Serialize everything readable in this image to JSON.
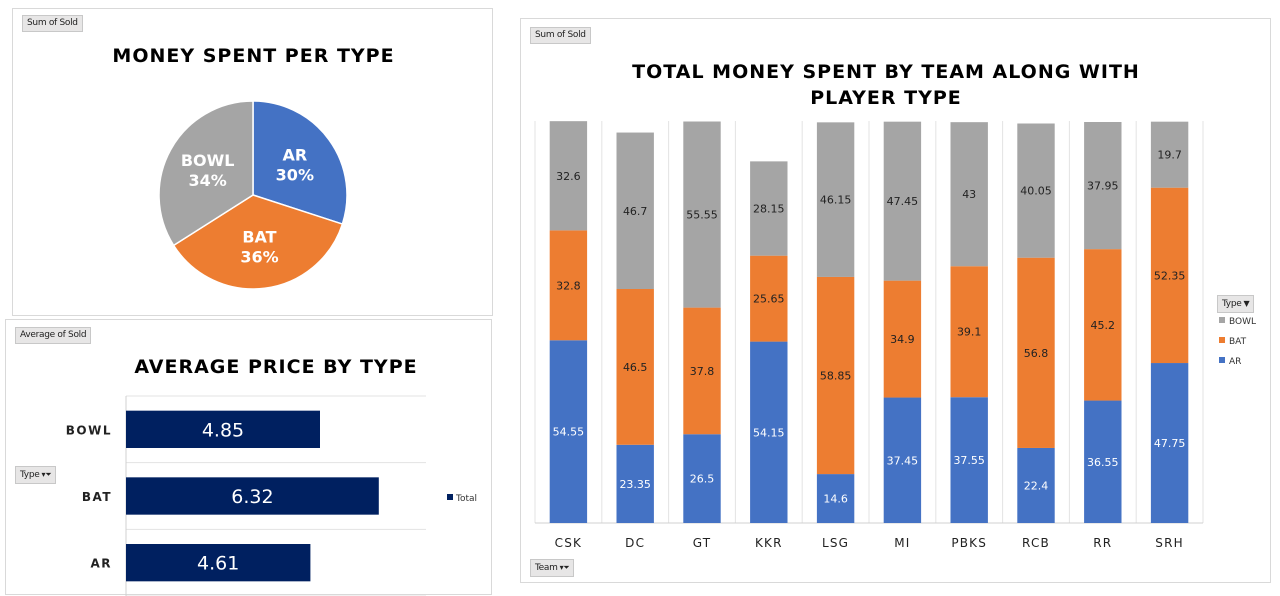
{
  "pie_panel": {
    "field_button": "Sum of Sold"
  },
  "avg_panel": {
    "field_button": "Average of Sold",
    "row_button": "Type",
    "legend_label": "Total"
  },
  "team_panel": {
    "field_button": "Sum of Sold",
    "axis_button": "Team",
    "legend_header": "Type"
  },
  "colors": {
    "ar": "#4472c4",
    "bat": "#ed7d31",
    "bowl": "#a5a5a5",
    "navy": "#002060"
  },
  "chart_data": [
    {
      "type": "pie",
      "title": "MONEY SPENT PER TYPE",
      "slices": [
        {
          "label": "AR",
          "percent_label": "30%",
          "value": 30,
          "color": "#4472c4"
        },
        {
          "label": "BAT",
          "percent_label": "36%",
          "value": 36,
          "color": "#ed7d31"
        },
        {
          "label": "BOWL",
          "percent_label": "34%",
          "value": 34,
          "color": "#a5a5a5"
        }
      ]
    },
    {
      "type": "bar",
      "orientation": "horizontal",
      "title": "AVERAGE PRICE BY TYPE",
      "categories": [
        "BOWL",
        "BAT",
        "AR"
      ],
      "values": [
        4.85,
        6.32,
        4.61
      ],
      "value_labels": [
        "4.85",
        "6.32",
        "4.61"
      ],
      "xlim": [
        0,
        7.5
      ],
      "grid": true,
      "legend": "right",
      "series": [
        {
          "name": "Total",
          "color": "#002060"
        }
      ]
    },
    {
      "type": "bar",
      "stacked": true,
      "title": "TOTAL MONEY SPENT BY TEAM ALONG WITH PLAYER TYPE",
      "categories": [
        "CSK",
        "DC",
        "GT",
        "KKR",
        "LSG",
        "MI",
        "PBKS",
        "RCB",
        "RR",
        "SRH"
      ],
      "ylim": [
        0,
        120
      ],
      "grid": true,
      "legend": "right",
      "series": [
        {
          "name": "AR",
          "color": "#4472c4",
          "values": [
            54.55,
            23.35,
            26.5,
            54.15,
            14.6,
            37.45,
            37.55,
            22.4,
            36.55,
            47.75
          ],
          "labels": [
            "54.55",
            "23.35",
            "26.5",
            "54.15",
            "14.6",
            "37.45",
            "37.55",
            "22.4",
            "36.55",
            "47.75"
          ]
        },
        {
          "name": "BAT",
          "color": "#ed7d31",
          "values": [
            32.8,
            46.5,
            37.8,
            25.65,
            58.85,
            34.9,
            39.1,
            56.8,
            45.2,
            52.35
          ],
          "labels": [
            "32.8",
            "46.5",
            "37.8",
            "25.65",
            "58.85",
            "34.9",
            "39.1",
            "56.8",
            "45.2",
            "52.35"
          ]
        },
        {
          "name": "BOWL",
          "color": "#a5a5a5",
          "values": [
            32.6,
            46.7,
            55.55,
            28.15,
            46.15,
            47.45,
            43,
            40.05,
            37.95,
            19.7
          ],
          "labels": [
            "32.6",
            "46.7",
            "55.55",
            "28.15",
            "46.15",
            "47.45",
            "43",
            "40.05",
            "37.95",
            "19.7"
          ]
        }
      ],
      "legend_order": [
        "BOWL",
        "BAT",
        "AR"
      ]
    }
  ]
}
